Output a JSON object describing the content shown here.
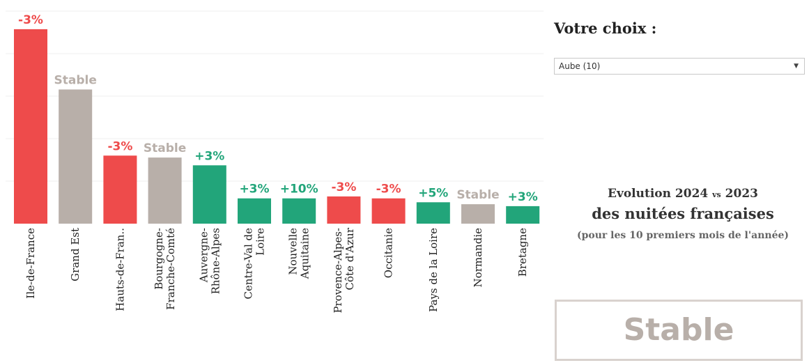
{
  "chart_data": {
    "type": "bar",
    "categories": [
      "Ile-de-France",
      "Grand Est",
      "Hauts-de-Fran..",
      "Bourgogne-Franche-Comté",
      "Auvergne-Rhône-Alpes",
      "Centre-Val de Loire",
      "Nouvelle Aquitaine",
      "Provence-Alpes-Côte d'Azur",
      "Occitanie",
      "Pays de la Loire",
      "Normandie",
      "Bretagne"
    ],
    "category_lines": [
      [
        "Ile-de-France"
      ],
      [
        "Grand Est"
      ],
      [
        "Hauts-de-Fran.."
      ],
      [
        "Bourgogne-",
        "Franche-Comté"
      ],
      [
        "Auvergne-",
        "Rhône-Alpes"
      ],
      [
        "Centre-Val de",
        "Loire"
      ],
      [
        "Nouvelle",
        "Aquitaine"
      ],
      [
        "Provence-Alpes-",
        "Côte d'Azur"
      ],
      [
        "Occitanie"
      ],
      [
        "Pays de la Loire"
      ],
      [
        "Normandie"
      ],
      [
        "Bretagne"
      ]
    ],
    "values": [
      100,
      69,
      35,
      34,
      30,
      13,
      13,
      14,
      13,
      11,
      10,
      9
    ],
    "labels": [
      "-3%",
      "Stable",
      "-3%",
      "Stable",
      "+3%",
      "+3%",
      "+10%",
      "-3%",
      "-3%",
      "+5%",
      "Stable",
      "+3%"
    ],
    "status": [
      "down",
      "stable",
      "down",
      "stable",
      "up",
      "up",
      "up",
      "down",
      "down",
      "up",
      "stable",
      "up"
    ],
    "ylim": [
      0,
      110
    ],
    "grid": true,
    "colors": {
      "down": "#ee4b4b",
      "stable": "#b8afa9",
      "up": "#22a57a"
    }
  },
  "panel": {
    "title": "Votre choix :",
    "select_value": "Aube (10)",
    "select_arrow": "▼",
    "evolution_line1_a": "Evolution 2024",
    "evolution_vs": "vs",
    "evolution_line1_b": "2023",
    "evolution_line2": "des nuitées françaises",
    "evolution_line3": "(pour les 10 premiers mois de l'année)",
    "result": "Stable"
  }
}
